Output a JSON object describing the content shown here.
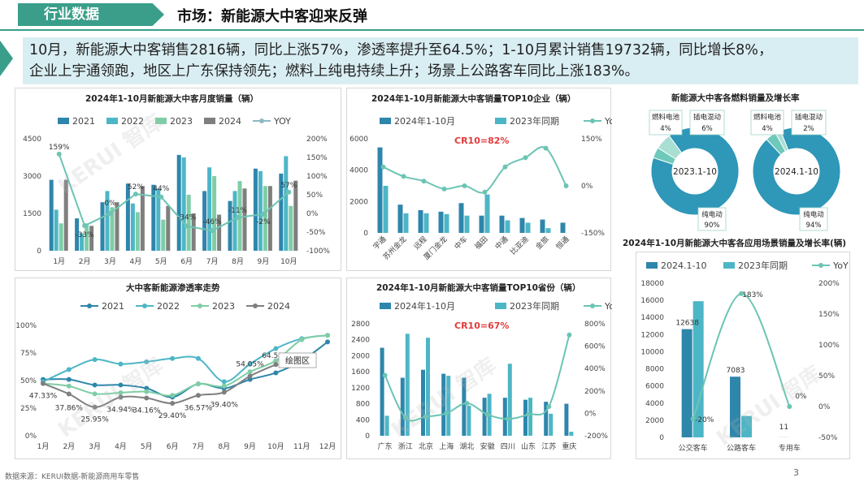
{
  "header": {
    "tag": "行业数据",
    "title": "市场：新能源大中客迎来反弹"
  },
  "summary": {
    "line1": "10月，新能源大中客销售2816辆，同比上涨57%，渗透率提升至64.5%；1-10月累计销售19732辆，同比增长8%，",
    "line2": "企业上宇通领跑，地区上广东保持领先；燃料上纯电持续上升；场景上公路客车同比上涨183%。"
  },
  "footer": {
    "source": "数据来源：KERUI数据-新能源商用车零售",
    "page": "3"
  },
  "watermark": "KERUI 智库",
  "colors": {
    "accent": "#3a9e8a",
    "c2021": "#2e86ab",
    "c2022": "#4db6c6",
    "c2023": "#7fcda6",
    "c2024": "#7f7f7f",
    "yoy": "#6cc4b4",
    "donut": "#2f97b8"
  },
  "chart_data": [
    {
      "id": "monthly",
      "type": "bar",
      "title": "2024年1-10月新能源大中客月度销量（辆）",
      "categories": [
        "1月",
        "2月",
        "3月",
        "4月",
        "5月",
        "6月",
        "7月",
        "8月",
        "9月",
        "10月"
      ],
      "series": [
        {
          "name": "2021",
          "values": [
            2850,
            1300,
            1950,
            2700,
            2650,
            3850,
            2400,
            2000,
            3300,
            3100
          ]
        },
        {
          "name": "2022",
          "values": [
            1650,
            700,
            2400,
            1900,
            2500,
            3750,
            3350,
            2400,
            3200,
            3800
          ]
        },
        {
          "name": "2023",
          "values": [
            1100,
            1100,
            1750,
            1550,
            1250,
            2250,
            3000,
            2800,
            2600,
            1800
          ]
        },
        {
          "name": "2024",
          "values": [
            2850,
            1000,
            1950,
            2600,
            1800,
            1500,
            1450,
            2500,
            2600,
            2816
          ]
        }
      ],
      "yoy": {
        "name": "YOY",
        "values": [
          159,
          -33,
          0,
          52,
          44,
          -34,
          -46,
          -11,
          -2,
          57
        ],
        "labels": [
          "159%",
          "-33%",
          "0%",
          "52%",
          "44%",
          "-34%",
          "-46%",
          "-11%",
          "-2%",
          "57%"
        ]
      },
      "ylim": [
        0,
        4500
      ],
      "yticks": [
        "0",
        "1500",
        "3000",
        "4500"
      ],
      "y2lim": [
        -100,
        200
      ],
      "y2ticks": [
        "-100%",
        "-50%",
        "0%",
        "50%",
        "100%",
        "150%",
        "200%"
      ]
    },
    {
      "id": "top10ent",
      "type": "bar",
      "title": "2024年1-10月新能源大中客销量TOP10企业（辆）",
      "annotation": "CR10=82%",
      "categories": [
        "宇通",
        "苏州金龙",
        "远程",
        "厦门金龙",
        "中车",
        "福田",
        "中通",
        "比亚迪",
        "金旅",
        "恒通"
      ],
      "series": [
        {
          "name": "2024年1-10月",
          "values": [
            5450,
            1800,
            1450,
            1350,
            1900,
            1100,
            1100,
            950,
            850,
            650
          ]
        },
        {
          "name": "2023年同期",
          "values": [
            3000,
            1250,
            1250,
            1200,
            1100,
            2450,
            800,
            650,
            300,
            0
          ]
        }
      ],
      "yoy": {
        "name": "YoY",
        "values": [
          60,
          30,
          15,
          -10,
          0,
          -20,
          60,
          90,
          120,
          0
        ]
      },
      "ylim": [
        0,
        6000
      ],
      "yticks": [
        "0",
        "2000",
        "4000",
        "6000"
      ],
      "y2lim": [
        -150,
        150
      ],
      "y2ticks": [
        "-150%",
        "0%",
        "150%"
      ]
    },
    {
      "id": "fuel",
      "type": "pie",
      "title": "新能源大中客各燃料销量及增长率",
      "pies": [
        {
          "label": "2023.1-10",
          "slices": [
            {
              "name": "纯电动",
              "value": 90
            },
            {
              "name": "燃料电池",
              "value": 4
            },
            {
              "name": "插电混动",
              "value": 6
            }
          ],
          "labels": {
            "bev": "纯电动",
            "bev_pct": "90%",
            "fcev": "燃料电池",
            "fcev_pct": "4%",
            "phev": "插电混动",
            "phev_pct": "6%"
          }
        },
        {
          "label": "2024.1-10",
          "slices": [
            {
              "name": "纯电动",
              "value": 94
            },
            {
              "name": "燃料电池",
              "value": 4
            },
            {
              "name": "插电混动",
              "value": 2
            }
          ],
          "labels": {
            "bev": "纯电动",
            "bev_pct": "94%",
            "fcev": "燃料电池",
            "fcev_pct": "4%",
            "phev": "插电混动",
            "phev_pct": "2%"
          }
        }
      ]
    },
    {
      "id": "penetration",
      "type": "line",
      "title": "大中客新能源渗透率走势",
      "categories": [
        "1月",
        "2月",
        "3月",
        "4月",
        "5月",
        "6月",
        "7月",
        "8月",
        "9月",
        "10月",
        "11月",
        "12月"
      ],
      "series": [
        {
          "name": "2021",
          "values": [
            51,
            51,
            46,
            46,
            43,
            35,
            47,
            43,
            51,
            57,
            68,
            85
          ]
        },
        {
          "name": "2022",
          "values": [
            49,
            60,
            69,
            65,
            67,
            70,
            70,
            49,
            65,
            79,
            88,
            91
          ]
        },
        {
          "name": "2023",
          "values": [
            47.33,
            45,
            38,
            39,
            40,
            36.57,
            47,
            45,
            58,
            68,
            87,
            91
          ]
        },
        {
          "name": "2024",
          "values": [
            47.33,
            37.86,
            25.95,
            34.94,
            34.16,
            29.4,
            36.57,
            39.4,
            54.05,
            64.53,
            null,
            null
          ]
        }
      ],
      "point_labels": [
        "47.33%",
        "37.86%",
        "25.95%",
        "34.94%",
        "34.16%",
        "29.40%",
        "36.57%",
        "39.40%",
        "54.05%",
        "64.53%"
      ],
      "tooltip": "绘图区",
      "ylim": [
        0,
        100
      ],
      "yticks": [
        "0%",
        "25%",
        "50%",
        "75%",
        "100%"
      ]
    },
    {
      "id": "top10prov",
      "type": "bar",
      "title": "2024年1-10月新能源大中客销量TOP10省份（辆）",
      "annotation": "CR10=67%",
      "categories": [
        "广东",
        "浙江",
        "北京",
        "上海",
        "湖北",
        "安徽",
        "四川",
        "山东",
        "江苏",
        "重庆"
      ],
      "series": [
        {
          "name": "2024年1-10月",
          "values": [
            2200,
            1450,
            1650,
            1550,
            1450,
            950,
            950,
            900,
            850,
            800
          ]
        },
        {
          "name": "2023年同期",
          "values": [
            500,
            2550,
            2450,
            1500,
            750,
            1050,
            1800,
            950,
            550,
            100
          ]
        }
      ],
      "yoy": {
        "name": "YoY",
        "values": [
          340,
          -40,
          -30,
          0,
          90,
          -10,
          -50,
          -10,
          60,
          700
        ]
      },
      "ylim": [
        0,
        2800
      ],
      "yticks": [
        "0",
        "400",
        "800",
        "1200",
        "1600",
        "2000",
        "2400",
        "2800"
      ],
      "y2lim": [
        -200,
        800
      ],
      "y2ticks": [
        "-200%",
        "0%",
        "200%",
        "400%",
        "600%",
        "800%"
      ]
    },
    {
      "id": "scene",
      "type": "bar",
      "title": "2024年1-10月新能源大中客各应用场景销量及增长率(辆)",
      "categories": [
        "公交客车",
        "公路客车",
        "专用车"
      ],
      "series": [
        {
          "name": "2024.1-10",
          "values": [
            12638,
            7083,
            11
          ]
        },
        {
          "name": "2023年同期",
          "values": [
            15900,
            2500,
            0
          ]
        }
      ],
      "bar_labels": [
        "12638",
        "7083",
        "11"
      ],
      "yoy": {
        "name": "YoY",
        "values": [
          -20,
          183,
          0
        ],
        "labels": [
          "-20%",
          "183%",
          "0%"
        ]
      },
      "ylim": [
        0,
        18000
      ],
      "yticks": [
        "0",
        "2000",
        "4000",
        "6000",
        "8000",
        "10000",
        "12000",
        "14000",
        "16000",
        "18000"
      ],
      "y2lim": [
        -50,
        200
      ],
      "y2ticks": [
        "-50%",
        "0%",
        "50%",
        "100%",
        "150%",
        "200%"
      ]
    }
  ]
}
